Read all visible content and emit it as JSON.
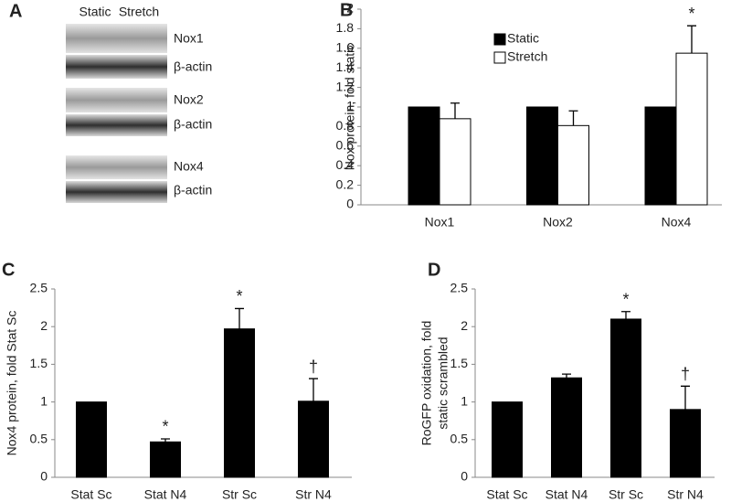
{
  "blot": {
    "label": "A",
    "columns": [
      "Static",
      "Stretch"
    ],
    "rows": [
      "Nox1",
      "β-actin",
      "Nox2",
      "β-actin",
      "Nox4",
      "β-actin"
    ]
  },
  "chart_data": [
    {
      "type": "bar",
      "label": "B",
      "ylabel": [
        "Nox protein, fold static"
      ],
      "categories": [
        "Nox1",
        "Nox2",
        "Nox4"
      ],
      "series": [
        {
          "name": "Static",
          "color": "#000000",
          "values": [
            1,
            1,
            1
          ]
        },
        {
          "name": "Stretch",
          "color": "#ffffff",
          "values": [
            0.88,
            0.81,
            1.55
          ],
          "errors": [
            0.16,
            0.15,
            0.28
          ],
          "markers": [
            null,
            null,
            "*"
          ]
        }
      ],
      "ylim": [
        0,
        2
      ],
      "yticks": [
        0,
        0.2,
        0.4,
        0.6,
        0.8,
        1,
        1.2,
        1.4,
        1.6,
        1.8,
        2
      ],
      "grid": false
    },
    {
      "type": "bar",
      "label": "C",
      "ylabel": [
        "Nox4 protein, fold Stat Sc"
      ],
      "categories": [
        "Stat Sc",
        "Stat N4",
        "Str Sc",
        "Str N4"
      ],
      "values": [
        1,
        0.47,
        1.97,
        1.01
      ],
      "errors": [
        null,
        0.04,
        0.27,
        0.3
      ],
      "markers": [
        null,
        "*",
        "*",
        "†"
      ],
      "color": "#000000",
      "ylim": [
        0,
        2.5
      ],
      "yticks": [
        0,
        0.5,
        1,
        1.5,
        2,
        2.5
      ],
      "grid": false
    },
    {
      "type": "bar",
      "label": "D",
      "ylabel": [
        "RoGFP oxidation, fold",
        "static scrambled"
      ],
      "categories": [
        "Stat Sc",
        "Stat N4",
        "Str Sc",
        "Str N4"
      ],
      "values": [
        1,
        1.32,
        2.1,
        0.9
      ],
      "errors": [
        null,
        0.05,
        0.1,
        0.31
      ],
      "markers": [
        null,
        null,
        "*",
        "†"
      ],
      "color": "#000000",
      "ylim": [
        0,
        2.5
      ],
      "yticks": [
        0,
        0.5,
        1,
        1.5,
        2,
        2.5
      ],
      "grid": false
    }
  ]
}
